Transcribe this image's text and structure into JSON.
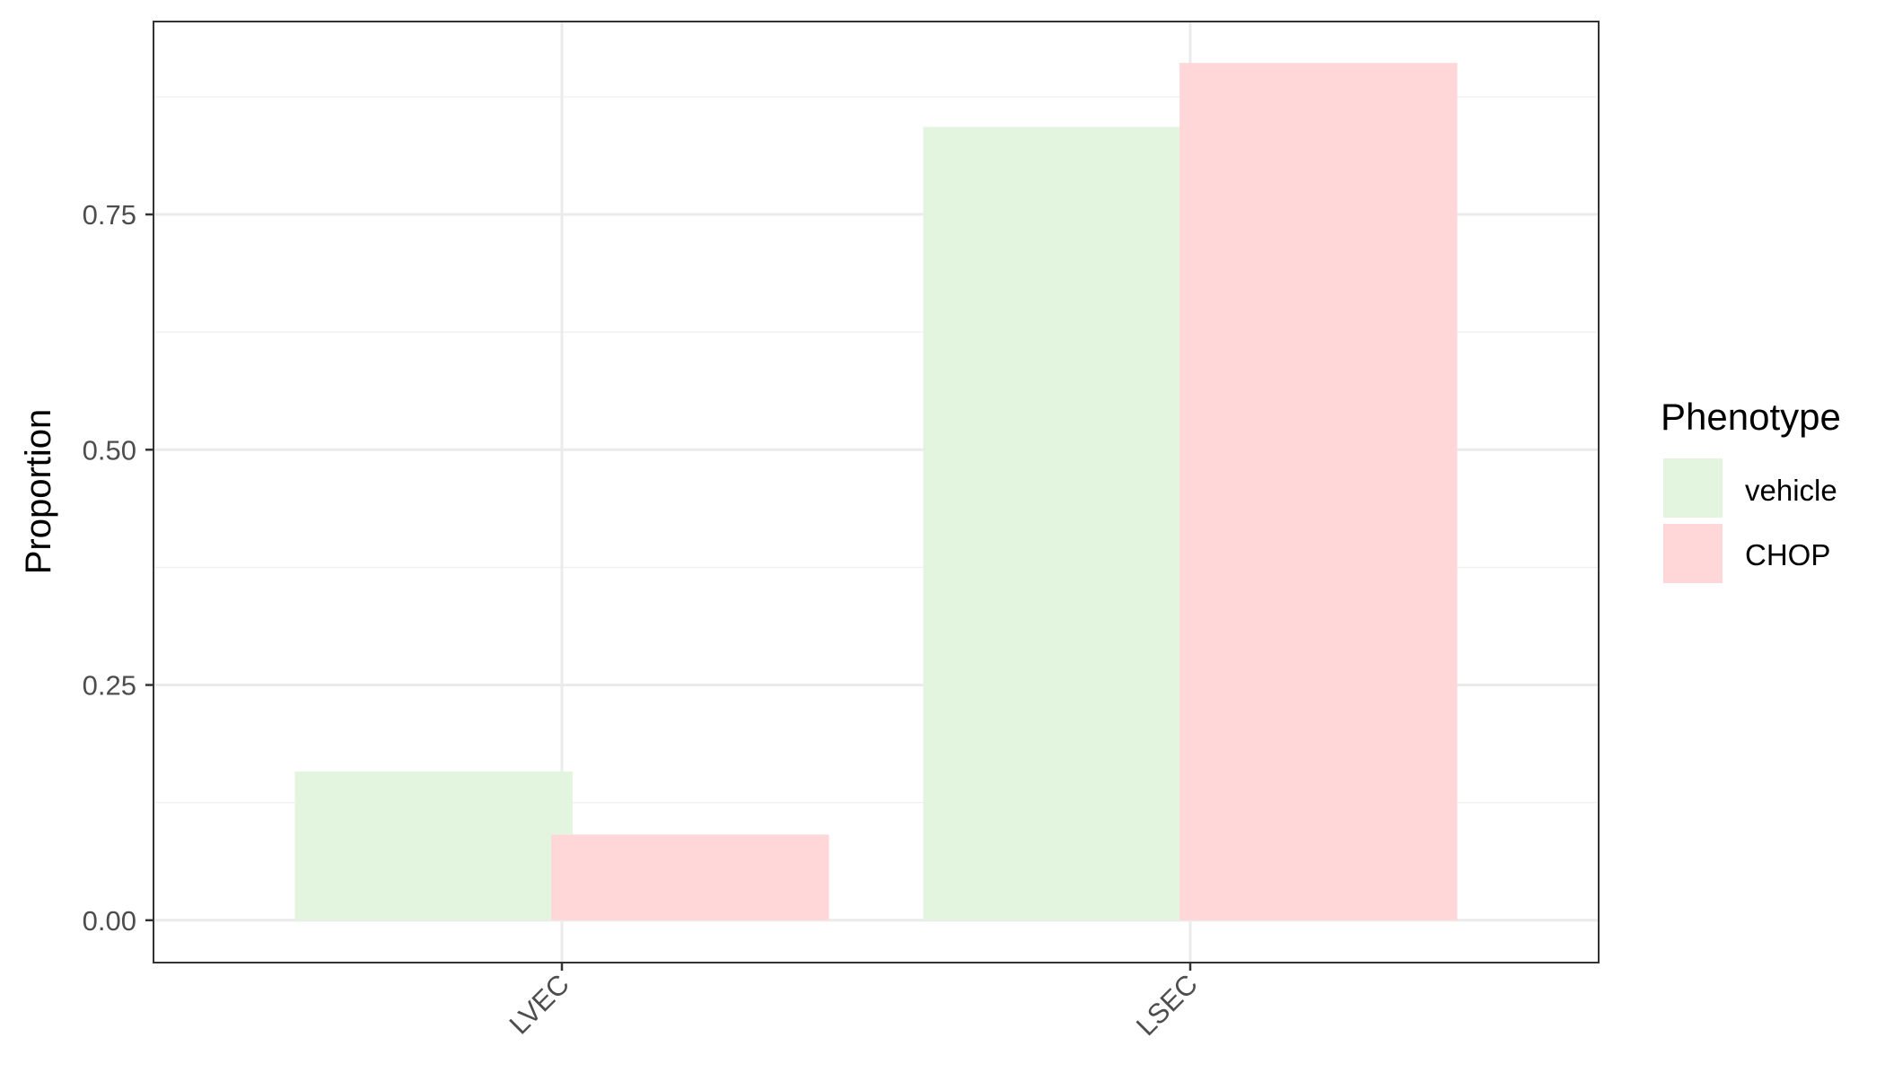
{
  "chart_data": {
    "type": "bar",
    "title": "",
    "xlabel": "",
    "ylabel": "Proportion",
    "categories": [
      "LVEC",
      "LSEC"
    ],
    "series": [
      {
        "name": "vehicle",
        "values": [
          0.158,
          0.843
        ],
        "color": "#E3F5DF"
      },
      {
        "name": "CHOP",
        "values": [
          0.091,
          0.911
        ],
        "color": "#FFD7D9"
      }
    ],
    "ylim": [
      -0.045,
      0.955
    ],
    "yticks": [
      0.0,
      0.25,
      0.5,
      0.75
    ],
    "ytick_labels": [
      "0.00",
      "0.25",
      "0.50",
      "0.75"
    ],
    "grid": true,
    "legend": {
      "title": "Phenotype",
      "position": "right"
    }
  }
}
